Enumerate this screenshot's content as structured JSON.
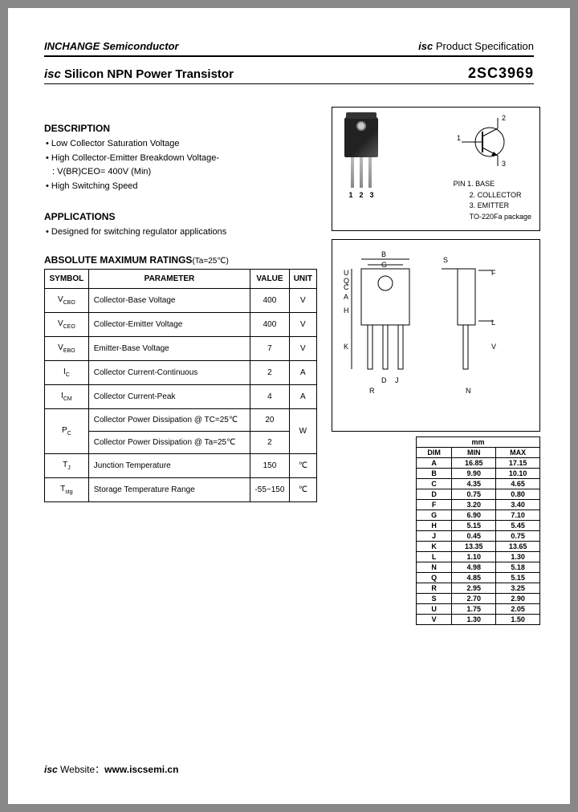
{
  "header": {
    "company": "INCHANGE Semiconductor",
    "spec_prefix": "isc",
    "spec_text": "Product Specification"
  },
  "title": {
    "isc": "isc",
    "text": "Silicon NPN Power Transistor",
    "part_number": "2SC3969"
  },
  "description": {
    "heading": "DESCRIPTION",
    "items": [
      "Low Collector Saturation Voltage",
      "High Collector-Emitter Breakdown Voltage-",
      "High Switching Speed"
    ],
    "sub_line": ": V(BR)CEO= 400V (Min)"
  },
  "applications": {
    "heading": "APPLICATIONS",
    "items": [
      "Designed for switching regulator applications"
    ]
  },
  "package_box": {
    "pin_header": "PIN",
    "pins": [
      "1. BASE",
      "2. COLLECTOR",
      "3. EMITTER"
    ],
    "package_name": "TO-220Fa package",
    "leg_labels": [
      "1",
      "2",
      "3"
    ],
    "schematic_labels": {
      "base": "1",
      "collector": "2",
      "emitter": "3"
    }
  },
  "ratings": {
    "heading": "ABSOLUTE MAXIMUM RATINGS",
    "condition": "(Ta=25℃)",
    "columns": [
      "SYMBOL",
      "PARAMETER",
      "VALUE",
      "UNIT"
    ],
    "rows": [
      {
        "symbol": "V",
        "sub": "CBO",
        "param": "Collector-Base Voltage",
        "value": "400",
        "unit": "V",
        "rowspan_unit": 1
      },
      {
        "symbol": "V",
        "sub": "CEO",
        "param": "Collector-Emitter Voltage",
        "value": "400",
        "unit": "V",
        "rowspan_unit": 1
      },
      {
        "symbol": "V",
        "sub": "EBO",
        "param": "Emitter-Base Voltage",
        "value": "7",
        "unit": "V",
        "rowspan_unit": 1
      },
      {
        "symbol": "I",
        "sub": "C",
        "param": "Collector Current-Continuous",
        "value": "2",
        "unit": "A",
        "rowspan_unit": 1
      },
      {
        "symbol": "I",
        "sub": "CM",
        "param": "Collector Current-Peak",
        "value": "4",
        "unit": "A",
        "rowspan_unit": 1
      }
    ],
    "pc_symbol": "P",
    "pc_sub": "C",
    "pc_row1_param": "Collector Power Dissipation @ TC=25℃",
    "pc_row1_value": "20",
    "pc_row2_param": "Collector Power Dissipation @ Ta=25℃",
    "pc_row2_value": "2",
    "pc_unit": "W",
    "tj": {
      "symbol": "T",
      "sub": "J",
      "param": "Junction Temperature",
      "value": "150",
      "unit": "℃"
    },
    "tstg": {
      "symbol": "T",
      "sub": "stg",
      "param": "Storage Temperature Range",
      "value": "-55~150",
      "unit": "℃"
    }
  },
  "dimensions": {
    "unit_header": "mm",
    "columns": [
      "DIM",
      "MIN",
      "MAX"
    ],
    "rows": [
      [
        "A",
        "16.85",
        "17.15"
      ],
      [
        "B",
        "9.90",
        "10.10"
      ],
      [
        "C",
        "4.35",
        "4.65"
      ],
      [
        "D",
        "0.75",
        "0.80"
      ],
      [
        "F",
        "3.20",
        "3.40"
      ],
      [
        "G",
        "6.90",
        "7.10"
      ],
      [
        "H",
        "5.15",
        "5.45"
      ],
      [
        "J",
        "0.45",
        "0.75"
      ],
      [
        "K",
        "13.35",
        "13.65"
      ],
      [
        "L",
        "1.10",
        "1.30"
      ],
      [
        "N",
        "4.98",
        "5.18"
      ],
      [
        "Q",
        "4.85",
        "5.15"
      ],
      [
        "R",
        "2.95",
        "3.25"
      ],
      [
        "S",
        "2.70",
        "2.90"
      ],
      [
        "U",
        "1.75",
        "2.05"
      ],
      [
        "V",
        "1.30",
        "1.50"
      ]
    ]
  },
  "dim_labels": [
    "A",
    "B",
    "C",
    "D",
    "F",
    "G",
    "H",
    "J",
    "K",
    "L",
    "N",
    "Q",
    "R",
    "S",
    "U",
    "V"
  ],
  "footer": {
    "isc": "isc",
    "label": "Website：",
    "url": "www.iscsemi.cn"
  }
}
